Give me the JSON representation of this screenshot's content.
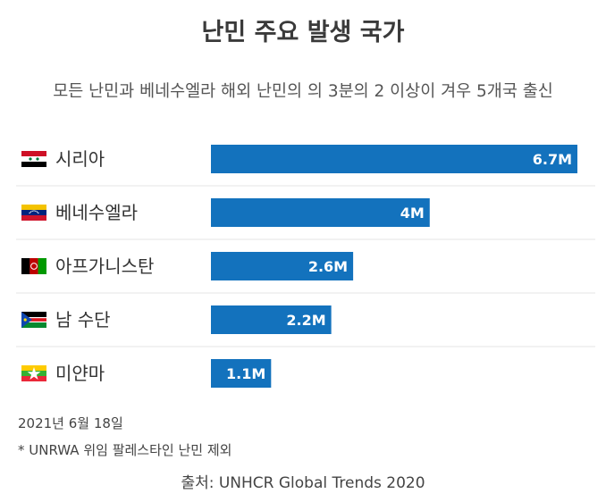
{
  "header": {
    "title": "난민 주요 발생 국가",
    "subtitle": "모든 난민과 베네수엘라 해외 난민의 의 3분의 2 이상이 겨우 5개국 출신"
  },
  "chart_data": {
    "type": "bar",
    "orientation": "horizontal",
    "categories": [
      "시리아",
      "베네수엘라",
      "아프가니스탄",
      "남 수단",
      "미얀마"
    ],
    "values": [
      6.7,
      4,
      2.6,
      2.2,
      1.1
    ],
    "data_labels": [
      "6.7M",
      "4M",
      "2.6M",
      "2.2M",
      "1.1M"
    ],
    "title": "난민 주요 발생 국가",
    "subtitle": "모든 난민과 베네수엘라 해외 난민의 의 3분의 2 이상이 겨우 5개국 출신",
    "xlabel": "",
    "ylabel": "",
    "unit": "M",
    "xlim": [
      0,
      6.7
    ],
    "grid": false,
    "bar_color": "#1372bd",
    "flag_icons": [
      "syria-flag-icon",
      "venezuela-flag-icon",
      "afghanistan-flag-icon",
      "south-sudan-flag-icon",
      "myanmar-flag-icon"
    ]
  },
  "footer": {
    "date": "2021년 6월 18일",
    "note": "* UNRWA 위임 팔레스타인 난민 제외",
    "source": "출처: UNHCR Global Trends 2020"
  }
}
